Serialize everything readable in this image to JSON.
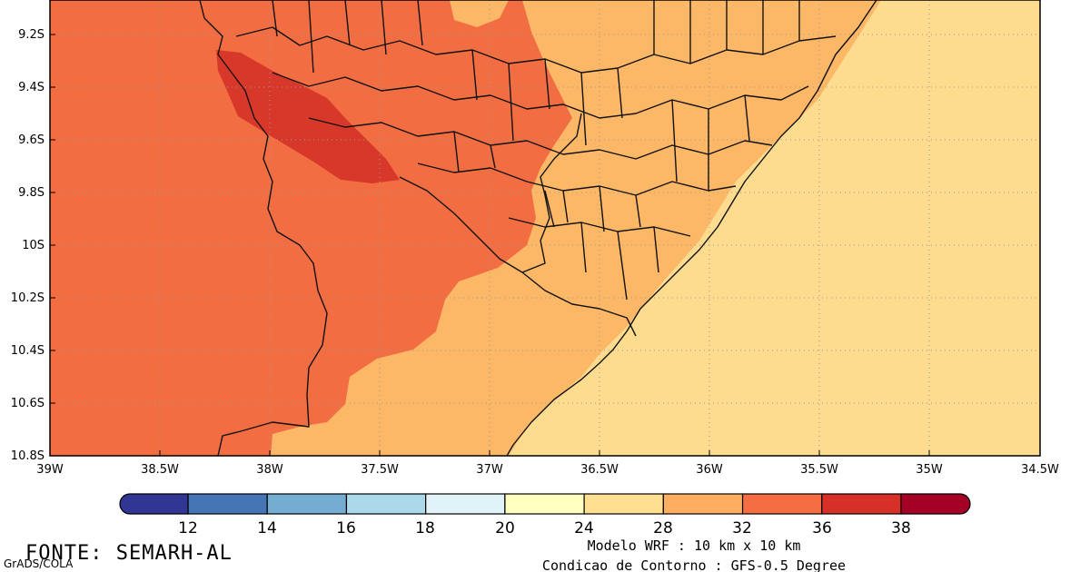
{
  "map": {
    "lat_labels": [
      "9.2S",
      "9.4S",
      "9.6S",
      "9.8S",
      "10S",
      "10.2S",
      "10.4S",
      "10.6S",
      "10.8S"
    ],
    "lon_labels": [
      "39W",
      "38.5W",
      "38W",
      "37.5W",
      "37W",
      "36.5W",
      "36W",
      "35.5W",
      "35W",
      "34.5W"
    ],
    "palette": {
      "range_24_28": "#fddb8f",
      "range_28_32": "#fcb866",
      "range_32_36": "#f26e42",
      "range_36_38": "#d8382a",
      "border_color": "#111111"
    }
  },
  "colorbar": {
    "labels": [
      "12",
      "14",
      "16",
      "18",
      "20",
      "24",
      "28",
      "32",
      "36",
      "38"
    ],
    "colors": [
      "#313695",
      "#4575b4",
      "#74add1",
      "#abd9e9",
      "#e0f3f8",
      "#ffffbf",
      "#fee090",
      "#fdae61",
      "#f46d43",
      "#d73027",
      "#a50026"
    ]
  },
  "footer": {
    "source": "FONTE: SEMARH-AL",
    "credit": "GrADS/COLA",
    "model_line1": "Modelo WRF : 10 km x 10 km",
    "model_line2": "Condicao de Contorno : GFS-0.5 Degree"
  }
}
